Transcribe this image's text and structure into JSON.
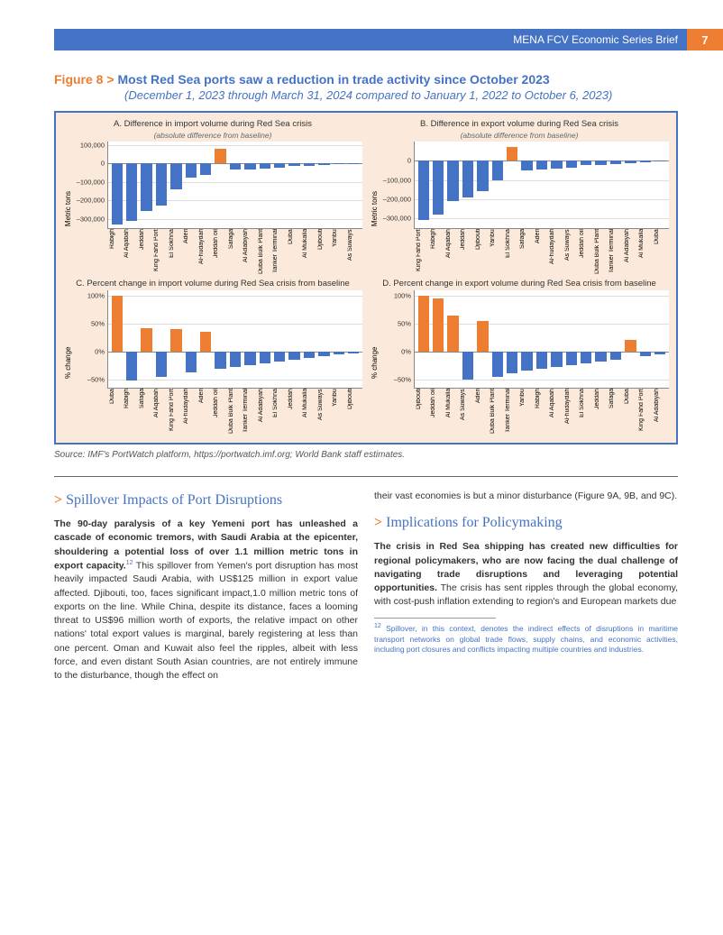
{
  "header": {
    "series": "MENA FCV Economic Series Brief",
    "page": "7"
  },
  "figure": {
    "num": "Figure 8",
    "arrow": ">",
    "title": "Most Red Sea ports saw a reduction in trade activity since October 2023",
    "subtitle": "(December 1, 2023 through March 31, 2024 compared to January 1, 2022 to October 6, 2023)",
    "source": "Source: IMF's PortWatch platform, https://portwatch.imf.org; World Bank staff estimates.",
    "colors": {
      "pos": "#ed7d31",
      "neg": "#4472c4",
      "bg": "#fbeadb",
      "border": "#4472c4",
      "plot_bg": "#ffffff",
      "grid": "#dddddd"
    },
    "panels": {
      "A": {
        "title": "A. Difference in import volume during Red Sea crisis",
        "sub": "(absolute difference from baseline)",
        "ylabel": "Metric tons",
        "ymin": -350000,
        "ymax": 120000,
        "yticks": [
          {
            "v": 100000,
            "l": "100,000"
          },
          {
            "v": 0,
            "l": "0"
          },
          {
            "v": -100000,
            "l": "–100,000"
          },
          {
            "v": -200000,
            "l": "–200,000"
          },
          {
            "v": -300000,
            "l": "–300,000"
          }
        ],
        "data": [
          {
            "l": "Rabigh",
            "v": -330000
          },
          {
            "l": "Al Aqabah",
            "v": -310000
          },
          {
            "l": "Jeddah",
            "v": -260000
          },
          {
            "l": "King Fahd Port",
            "v": -230000
          },
          {
            "l": "El Sokhna",
            "v": -140000
          },
          {
            "l": "Aden",
            "v": -75000
          },
          {
            "l": "Al-hudaydah",
            "v": -60000
          },
          {
            "l": "Jeddah oil",
            "v": 80000
          },
          {
            "l": "Safaga",
            "v": -35000
          },
          {
            "l": "Al Adabiyah",
            "v": -32000
          },
          {
            "l": "Duba Bulk Plant",
            "v": -28000
          },
          {
            "l": "Tanker Terminal",
            "v": -25000
          },
          {
            "l": "Duba",
            "v": -15000
          },
          {
            "l": "Al Mukalla",
            "v": -12000
          },
          {
            "l": "Djibouti",
            "v": -8000
          },
          {
            "l": "Yanbu",
            "v": -5000
          },
          {
            "l": "As Suways",
            "v": -3000
          }
        ]
      },
      "B": {
        "title": "B. Difference in export volume during Red Sea crisis",
        "sub": "(absolute difference from baseline)",
        "ylabel": "Metric tons",
        "ymin": -350000,
        "ymax": 100000,
        "yticks": [
          {
            "v": 0,
            "l": "0"
          },
          {
            "v": -100000,
            "l": "–100,000"
          },
          {
            "v": -200000,
            "l": "–200,000"
          },
          {
            "v": -300000,
            "l": "–300,000"
          }
        ],
        "data": [
          {
            "l": "King Fahd Port",
            "v": -310000
          },
          {
            "l": "Rabigh",
            "v": -280000
          },
          {
            "l": "Al Aqabah",
            "v": -210000
          },
          {
            "l": "Jeddah",
            "v": -190000
          },
          {
            "l": "Djibouti",
            "v": -160000
          },
          {
            "l": "Yanbu",
            "v": -100000
          },
          {
            "l": "El Sokhna",
            "v": 70000
          },
          {
            "l": "Safaga",
            "v": -50000
          },
          {
            "l": "Aden",
            "v": -45000
          },
          {
            "l": "Al-hudaydah",
            "v": -40000
          },
          {
            "l": "As Suways",
            "v": -35000
          },
          {
            "l": "Jeddah oil",
            "v": -25000
          },
          {
            "l": "Duba Bulk Plant",
            "v": -22000
          },
          {
            "l": "Tanker Terminal",
            "v": -18000
          },
          {
            "l": "Al Adabiyah",
            "v": -12000
          },
          {
            "l": "Al Mukalla",
            "v": -8000
          },
          {
            "l": "Duba",
            "v": -3000
          }
        ]
      },
      "C": {
        "title": "C. Percent change in import volume during Red Sea crisis from baseline",
        "sub": "",
        "ylabel": "% change",
        "ymin": -65,
        "ymax": 110,
        "yticks": [
          {
            "v": 100,
            "l": "100%"
          },
          {
            "v": 50,
            "l": "50%"
          },
          {
            "v": 0,
            "l": "0%"
          },
          {
            "v": -50,
            "l": "–50%"
          }
        ],
        "data": [
          {
            "l": "Duba",
            "v": 100
          },
          {
            "l": "Rabigh",
            "v": -52
          },
          {
            "l": "Safaga",
            "v": 42
          },
          {
            "l": "Al Aqabah",
            "v": -45
          },
          {
            "l": "King Fahd Port",
            "v": 40
          },
          {
            "l": "Al-hudaydah",
            "v": -38
          },
          {
            "l": "Aden",
            "v": 35
          },
          {
            "l": "Jeddah oil",
            "v": -32
          },
          {
            "l": "Duba Bulk Plant",
            "v": -28
          },
          {
            "l": "Tanker Terminal",
            "v": -25
          },
          {
            "l": "Al Adabiyah",
            "v": -22
          },
          {
            "l": "El Sokhna",
            "v": -18
          },
          {
            "l": "Jeddah",
            "v": -15
          },
          {
            "l": "Al Mukalla",
            "v": -12
          },
          {
            "l": "As Suways",
            "v": -8
          },
          {
            "l": "Yanbu",
            "v": -5
          },
          {
            "l": "Djibouti",
            "v": -3
          }
        ]
      },
      "D": {
        "title": "D. Percent change in export volume during Red Sea crisis from baseline",
        "sub": "",
        "ylabel": "% change",
        "ymin": -65,
        "ymax": 110,
        "yticks": [
          {
            "v": 100,
            "l": "100%"
          },
          {
            "v": 50,
            "l": "50%"
          },
          {
            "v": 0,
            "l": "0%"
          },
          {
            "v": -50,
            "l": "–50%"
          }
        ],
        "data": [
          {
            "l": "Djibouti",
            "v": 100
          },
          {
            "l": "Jeddah oil",
            "v": 95
          },
          {
            "l": "Al Mukalla",
            "v": 65
          },
          {
            "l": "As Suways",
            "v": -50
          },
          {
            "l": "Aden",
            "v": 55
          },
          {
            "l": "Duba Bulk Plant",
            "v": -45
          },
          {
            "l": "Tanker Terminal",
            "v": -40
          },
          {
            "l": "Yanbu",
            "v": -35
          },
          {
            "l": "Rabigh",
            "v": -32
          },
          {
            "l": "Al Aqabah",
            "v": -28
          },
          {
            "l": "Al-hudaydah",
            "v": -25
          },
          {
            "l": "El Sokhna",
            "v": -22
          },
          {
            "l": "Jeddah",
            "v": -18
          },
          {
            "l": "Safaga",
            "v": -15
          },
          {
            "l": "Duba",
            "v": 20
          },
          {
            "l": "King Fahd Port",
            "v": -8
          },
          {
            "l": "Al Adabiyah",
            "v": -5
          }
        ]
      }
    }
  },
  "text": {
    "sec1_arrow": ">",
    "sec1_title": "Spillover Impacts of Port Disruptions",
    "para1_bold": "The 90-day paralysis of a key Yemeni port has unleashed a cascade of economic tremors, with Saudi Arabia at the epicenter, shouldering a potential loss of over 1.1 million metric tons in export capacity.",
    "sup1": "12",
    "para1_rest": " This spillover from Yemen's port disruption has most heavily impacted Saudi Arabia, with US$125 million in export value affected. Djibouti, too, faces significant impact,1.0 million metric tons of exports on the line. While China, despite its distance, faces a looming threat to US$96 million worth of exports, the relative impact on other nations' total export values is marginal, barely registering at less than one percent. Oman and Kuwait also feel the ripples, albeit with less force, and even distant South Asian countries, are not entirely immune to the disturbance, though the effect on",
    "col2_top": "their vast economies is but a minor disturbance (Figure 9A, 9B, and 9C).",
    "sec2_arrow": ">",
    "sec2_title": "Implications for Policymaking",
    "para2_bold": "The crisis in Red Sea shipping has created new difficulties for regional policymakers, who are now facing the dual challenge of navigating trade disruptions and leveraging potential opportunities.",
    "para2_rest": " The crisis has sent ripples through the global economy, with cost-push inflation extending to region's and European markets due",
    "footnote_num": "12",
    "footnote": " Spillover, in this context, denotes the indirect effects of disruptions in maritime transport networks on global trade flows, supply chains, and economic activities, including port closures and conflicts impacting multiple countries and industries."
  }
}
